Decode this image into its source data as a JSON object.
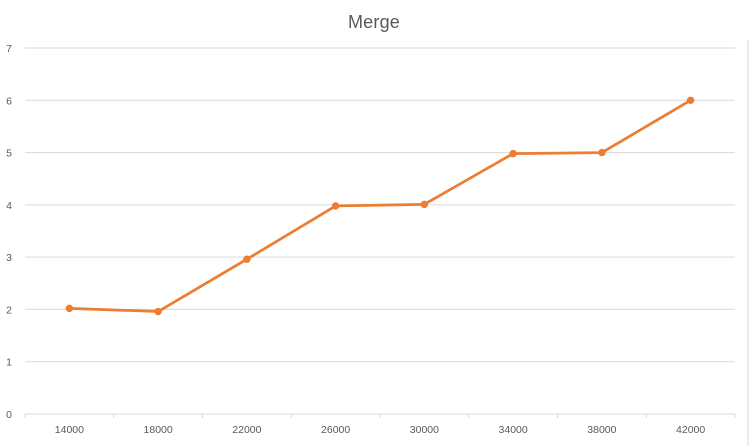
{
  "chart_data": {
    "type": "line",
    "title": "Merge",
    "xlabel": "",
    "ylabel": "",
    "x": [
      14000,
      18000,
      22000,
      26000,
      30000,
      34000,
      38000,
      42000
    ],
    "series": [
      {
        "values": [
          2.02,
          1.96,
          2.96,
          3.98,
          4.01,
          4.98,
          5.0,
          6.0
        ]
      }
    ],
    "ylim": [
      0,
      7
    ],
    "yticks": [
      0,
      1,
      2,
      3,
      4,
      5,
      6,
      7
    ],
    "grid": true,
    "legend": "none",
    "colors": {
      "line": "#ED7D31",
      "grid": "#d9d9d9",
      "text": "#595959"
    }
  }
}
